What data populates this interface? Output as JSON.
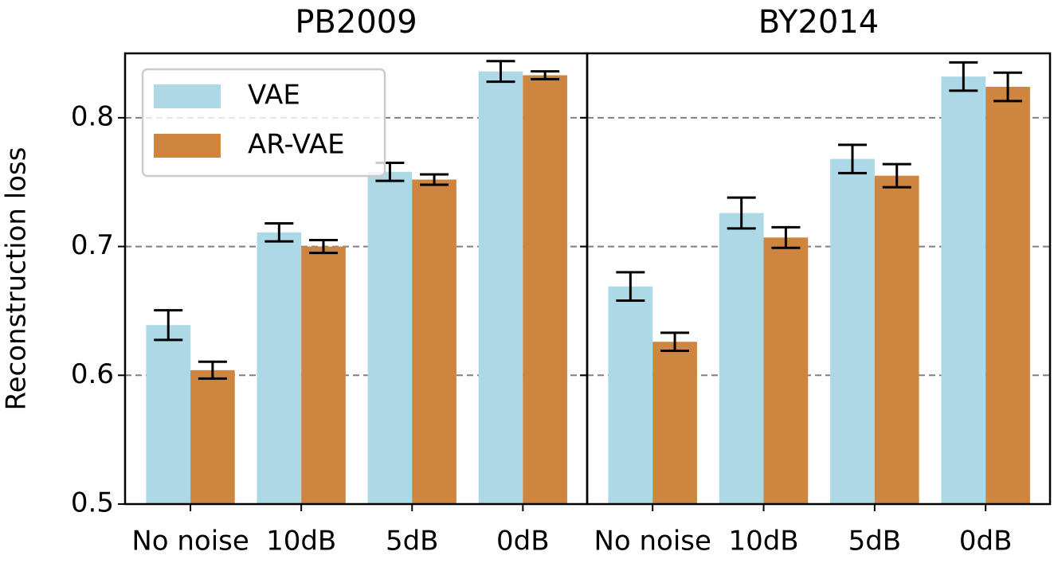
{
  "chart_data": [
    {
      "type": "bar",
      "title": "PB2009",
      "ylabel": "Reconstruction loss",
      "categories": [
        "No noise",
        "10dB",
        "5dB",
        "0dB"
      ],
      "series": [
        {
          "name": "VAE",
          "color": "#add8e6",
          "values": [
            0.639,
            0.711,
            0.758,
            0.836
          ],
          "errors": [
            0.0115,
            0.007,
            0.007,
            0.008
          ]
        },
        {
          "name": "AR-VAE",
          "color": "#cd853f",
          "values": [
            0.604,
            0.7,
            0.752,
            0.833
          ],
          "errors": [
            0.0065,
            0.005,
            0.004,
            0.003
          ]
        }
      ],
      "ylim": [
        0.5,
        0.85
      ],
      "yticks": [
        0.5,
        0.6,
        0.7,
        0.8
      ],
      "grid": true,
      "legend": "upper left"
    },
    {
      "type": "bar",
      "title": "BY2014",
      "categories": [
        "No noise",
        "10dB",
        "5dB",
        "0dB"
      ],
      "series": [
        {
          "name": "VAE",
          "color": "#add8e6",
          "values": [
            0.669,
            0.726,
            0.768,
            0.832
          ],
          "errors": [
            0.011,
            0.012,
            0.011,
            0.011
          ]
        },
        {
          "name": "AR-VAE",
          "color": "#cd853f",
          "values": [
            0.626,
            0.707,
            0.755,
            0.824
          ],
          "errors": [
            0.007,
            0.008,
            0.009,
            0.011
          ]
        }
      ],
      "ylim": [
        0.5,
        0.85
      ],
      "yticks": [
        0.5,
        0.6,
        0.7,
        0.8
      ],
      "grid": true
    }
  ]
}
